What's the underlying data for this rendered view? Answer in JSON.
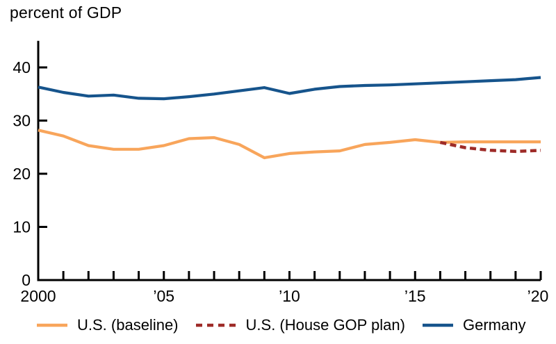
{
  "chart_data": {
    "type": "line",
    "title": "percent of GDP",
    "xlabel": "",
    "ylabel": "",
    "xlim": [
      2000,
      2020
    ],
    "ylim": [
      0,
      45
    ],
    "grid": false,
    "legend_position": "bottom",
    "y_ticks": [
      0,
      10,
      20,
      30,
      40
    ],
    "x_ticks": [
      2000,
      2001,
      2002,
      2003,
      2004,
      2005,
      2006,
      2007,
      2008,
      2009,
      2010,
      2011,
      2012,
      2013,
      2014,
      2015,
      2016,
      2017,
      2018,
      2019,
      2020
    ],
    "x_tick_labels": {
      "2000": "2000",
      "2005": "’05",
      "2010": "’10",
      "2015": "’15",
      "2020": "’20"
    },
    "axis_color": "#000000",
    "series": [
      {
        "name": "U.S. (baseline)",
        "color": "#F8A55B",
        "style": "solid",
        "x": [
          2000,
          2001,
          2002,
          2003,
          2004,
          2005,
          2006,
          2007,
          2008,
          2009,
          2010,
          2011,
          2012,
          2013,
          2014,
          2015,
          2016,
          2017,
          2018,
          2019,
          2020
        ],
        "values": [
          28.2,
          27.1,
          25.3,
          24.6,
          24.6,
          25.3,
          26.6,
          26.8,
          25.5,
          23.0,
          23.8,
          24.1,
          24.3,
          25.5,
          25.9,
          26.4,
          25.9,
          26.0,
          26.0,
          26.0,
          26.0
        ]
      },
      {
        "name": "U.S. (House GOP plan)",
        "color": "#9E2B28",
        "style": "dashed",
        "x": [
          2016,
          2017,
          2018,
          2019,
          2020
        ],
        "values": [
          25.9,
          24.9,
          24.4,
          24.2,
          24.4
        ]
      },
      {
        "name": "Germany",
        "color": "#16548C",
        "style": "solid",
        "x": [
          2000,
          2001,
          2002,
          2003,
          2004,
          2005,
          2006,
          2007,
          2008,
          2009,
          2010,
          2011,
          2012,
          2013,
          2014,
          2015,
          2016,
          2017,
          2018,
          2019,
          2020
        ],
        "values": [
          36.3,
          35.3,
          34.6,
          34.8,
          34.2,
          34.1,
          34.5,
          35.0,
          35.6,
          36.2,
          35.1,
          35.9,
          36.4,
          36.6,
          36.7,
          36.9,
          37.1,
          37.3,
          37.5,
          37.7,
          38.1
        ]
      }
    ]
  }
}
